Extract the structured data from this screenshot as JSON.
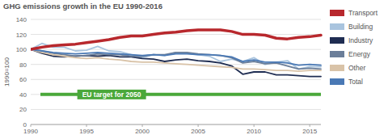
{
  "chart_data": {
    "type": "line",
    "title": "GHG emissions growth in the EU 1990-2016",
    "y_label": "1990=100",
    "x": [
      1990,
      1991,
      1992,
      1993,
      1994,
      1995,
      1996,
      1997,
      1998,
      1999,
      2000,
      2001,
      2002,
      2003,
      2004,
      2005,
      2006,
      2007,
      2008,
      2009,
      2010,
      2011,
      2012,
      2013,
      2014,
      2015,
      2016
    ],
    "xlim": [
      1990,
      2016
    ],
    "xticks": [
      1990,
      1995,
      2000,
      2005,
      2010,
      2015
    ],
    "ylim": [
      0,
      140
    ],
    "yticks": [
      0,
      20,
      40,
      60,
      80,
      100,
      120,
      140
    ],
    "grid": true,
    "legend": "right",
    "series": [
      {
        "name": "Transport",
        "color": "#b8282d",
        "values": [
          100,
          103,
          105,
          106,
          107,
          109,
          111,
          113,
          116,
          118,
          118,
          120,
          122,
          123,
          125,
          126,
          126,
          126,
          124,
          120,
          120,
          119,
          115,
          114,
          116,
          117,
          119
        ]
      },
      {
        "name": "Building",
        "color": "#a9c4de",
        "values": [
          100,
          108,
          103,
          103,
          98,
          99,
          104,
          98,
          97,
          93,
          89,
          93,
          92,
          96,
          95,
          93,
          91,
          84,
          87,
          84,
          89,
          80,
          83,
          85,
          74,
          77,
          77
        ]
      },
      {
        "name": "Industry",
        "color": "#1f2d52",
        "values": [
          100,
          95,
          91,
          90,
          91,
          92,
          91,
          92,
          90,
          90,
          88,
          87,
          84,
          86,
          87,
          85,
          84,
          82,
          78,
          67,
          70,
          70,
          66,
          66,
          65,
          64,
          64
        ]
      },
      {
        "name": "Energy",
        "color": "#6b7e99",
        "values": [
          100,
          98,
          95,
          93,
          91,
          92,
          94,
          93,
          93,
          91,
          91,
          93,
          93,
          96,
          96,
          94,
          93,
          92,
          89,
          82,
          84,
          81,
          82,
          78,
          74,
          75,
          74
        ]
      },
      {
        "name": "Other",
        "color": "#d9c3a8",
        "values": [
          100,
          96,
          93,
          91,
          89,
          88,
          89,
          87,
          86,
          84,
          83,
          83,
          82,
          81,
          80,
          79,
          78,
          77,
          76,
          74,
          74,
          73,
          72,
          72,
          71,
          72,
          72
        ]
      },
      {
        "name": "Total",
        "color": "#4a79b5",
        "values": [
          100,
          98,
          96,
          95,
          94,
          95,
          96,
          95,
          94,
          93,
          92,
          93,
          92,
          94,
          94,
          93,
          93,
          92,
          90,
          84,
          86,
          83,
          83,
          82,
          79,
          80,
          79
        ]
      }
    ],
    "annotations": [
      {
        "text": "EU target for 2050",
        "y": 40,
        "color": "#4aa83a"
      }
    ]
  }
}
